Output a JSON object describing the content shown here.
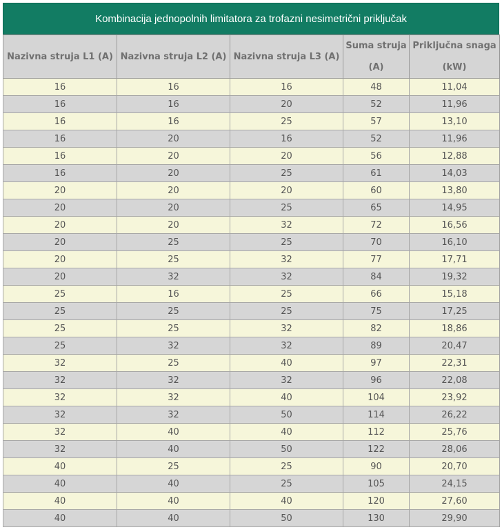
{
  "table": {
    "title": "Kombinacija jednopolnih limitatora za trofazni nesimetrični priključak",
    "headers": [
      [
        "Nazivna struja L1 (A)"
      ],
      [
        "Nazivna struja L2 (A)"
      ],
      [
        "Nazivna struja L3 (A)"
      ],
      [
        "Suma struja",
        "(A)"
      ],
      [
        "Priključna snaga",
        "(kW)"
      ]
    ],
    "rows": [
      [
        "16",
        "16",
        "16",
        "48",
        "11,04"
      ],
      [
        "16",
        "16",
        "20",
        "52",
        "11,96"
      ],
      [
        "16",
        "16",
        "25",
        "57",
        "13,10"
      ],
      [
        "16",
        "20",
        "16",
        "52",
        "11,96"
      ],
      [
        "16",
        "20",
        "20",
        "56",
        "12,88"
      ],
      [
        "16",
        "20",
        "25",
        "61",
        "14,03"
      ],
      [
        "20",
        "20",
        "20",
        "60",
        "13,80"
      ],
      [
        "20",
        "20",
        "25",
        "65",
        "14,95"
      ],
      [
        "20",
        "20",
        "32",
        "72",
        "16,56"
      ],
      [
        "20",
        "25",
        "25",
        "70",
        "16,10"
      ],
      [
        "20",
        "25",
        "32",
        "77",
        "17,71"
      ],
      [
        "20",
        "32",
        "32",
        "84",
        "19,32"
      ],
      [
        "25",
        "16",
        "25",
        "66",
        "15,18"
      ],
      [
        "25",
        "25",
        "25",
        "75",
        "17,25"
      ],
      [
        "25",
        "25",
        "32",
        "82",
        "18,86"
      ],
      [
        "25",
        "32",
        "32",
        "89",
        "20,47"
      ],
      [
        "32",
        "25",
        "40",
        "97",
        "22,31"
      ],
      [
        "32",
        "32",
        "32",
        "96",
        "22,08"
      ],
      [
        "32",
        "32",
        "40",
        "104",
        "23,92"
      ],
      [
        "32",
        "32",
        "50",
        "114",
        "26,22"
      ],
      [
        "32",
        "40",
        "40",
        "112",
        "25,76"
      ],
      [
        "32",
        "40",
        "50",
        "122",
        "28,06"
      ],
      [
        "40",
        "25",
        "25",
        "90",
        "20,70"
      ],
      [
        "40",
        "40",
        "25",
        "105",
        "24,15"
      ],
      [
        "40",
        "40",
        "40",
        "120",
        "27,60"
      ],
      [
        "40",
        "40",
        "50",
        "130",
        "29,90"
      ]
    ]
  },
  "colors": {
    "title_bg": "#127c63",
    "header_bg": "#d5d5d5",
    "row_odd_bg": "#f6f6da",
    "row_even_bg": "#d6d6d6"
  }
}
